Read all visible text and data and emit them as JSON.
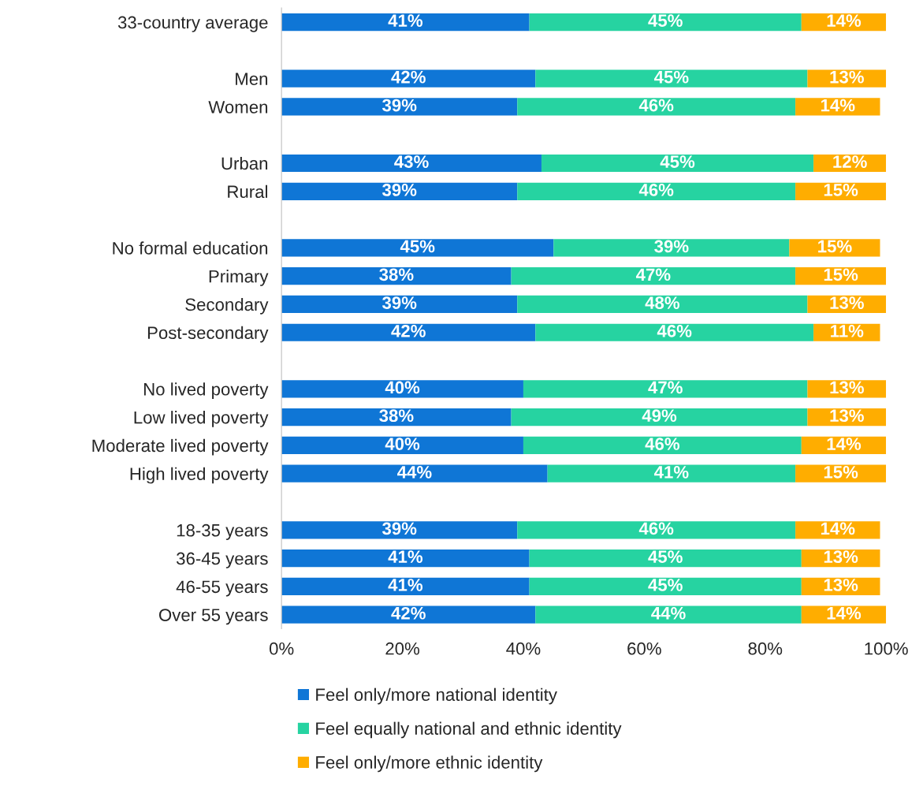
{
  "chart_data": {
    "type": "bar",
    "orientation": "horizontal",
    "stacked": true,
    "categories": [
      "33-country average",
      null,
      "Men",
      "Women",
      null,
      "Urban",
      "Rural",
      null,
      "No formal education",
      "Primary",
      "Secondary",
      "Post-secondary",
      null,
      "No lived poverty",
      "Low lived poverty",
      "Moderate lived poverty",
      "High lived poverty",
      null,
      "18-35 years",
      "36-45 years",
      "46-55 years",
      "Over 55 years"
    ],
    "series": [
      {
        "name": "Feel only/more national identity",
        "color": "#0f76d6",
        "values": [
          41,
          null,
          42,
          39,
          null,
          43,
          39,
          null,
          45,
          38,
          39,
          42,
          null,
          40,
          38,
          40,
          44,
          null,
          39,
          41,
          41,
          42
        ],
        "value_labels": [
          "41%",
          null,
          "42%",
          "39%",
          null,
          "43%",
          "39%",
          null,
          "45%",
          "38%",
          "39%",
          "42%",
          null,
          "40%",
          "38%",
          "40%",
          "44%",
          null,
          "39%",
          "41%",
          "41%",
          "42%"
        ]
      },
      {
        "name": "Feel equally national and ethnic identity",
        "color": "#26d3a1",
        "values": [
          45,
          null,
          45,
          46,
          null,
          45,
          46,
          null,
          39,
          47,
          48,
          46,
          null,
          47,
          49,
          46,
          41,
          null,
          46,
          45,
          45,
          44
        ],
        "value_labels": [
          "45%",
          null,
          "45%",
          "46%",
          null,
          "45%",
          "46%",
          null,
          "39%",
          "47%",
          "48%",
          "46%",
          null,
          "47%",
          "49%",
          "46%",
          "41%",
          null,
          "46%",
          "45%",
          "45%",
          "44%"
        ]
      },
      {
        "name": "Feel only/more ethnic identity",
        "color": "#ffad00",
        "values": [
          14,
          null,
          13,
          14,
          null,
          12,
          15,
          null,
          15,
          15,
          13,
          11,
          null,
          13,
          13,
          14,
          15,
          null,
          14,
          13,
          13,
          14
        ],
        "value_labels": [
          "14%",
          null,
          "13%",
          "14%",
          null,
          "12%",
          "15%",
          null,
          "15%",
          "15%",
          "13%",
          "11%",
          null,
          "13%",
          "13%",
          "14%",
          "15%",
          null,
          "14%",
          "13%",
          "13%",
          "14%"
        ]
      }
    ],
    "xlim": [
      0,
      100
    ],
    "xticks": [
      {
        "value": 0,
        "label": "0%"
      },
      {
        "value": 20,
        "label": "20%"
      },
      {
        "value": 40,
        "label": "40%"
      },
      {
        "value": 60,
        "label": "60%"
      },
      {
        "value": 80,
        "label": "80%"
      },
      {
        "value": 100,
        "label": "100%"
      }
    ],
    "legend": "bottom"
  }
}
